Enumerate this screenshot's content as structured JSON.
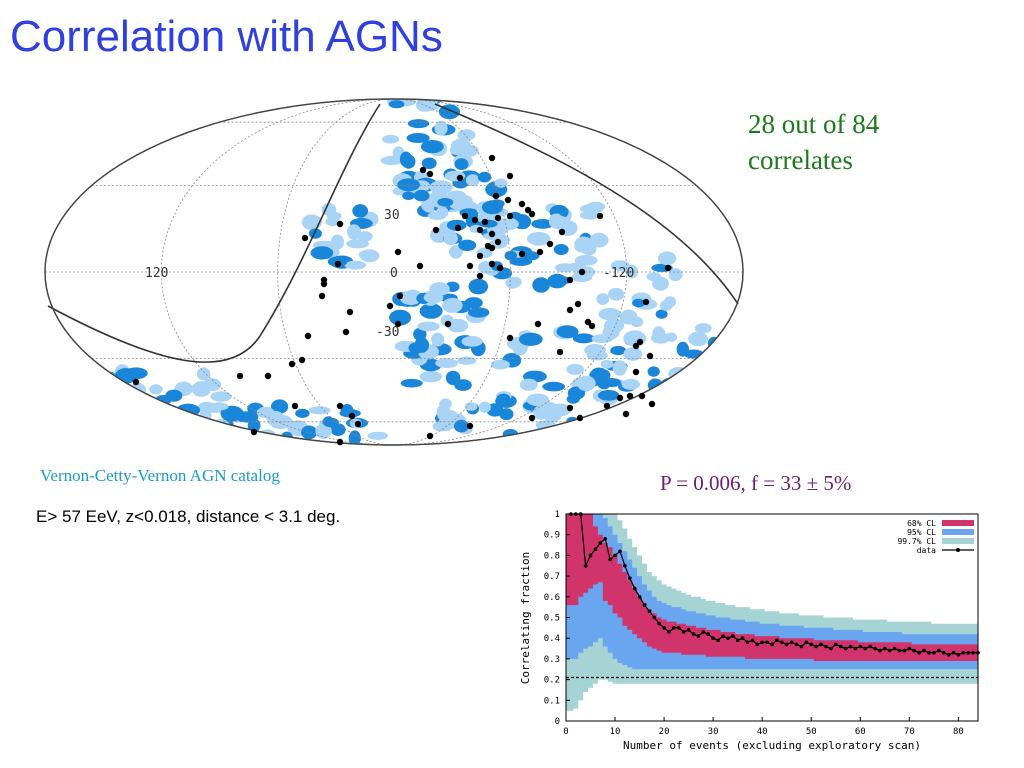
{
  "slide": {
    "title": "Correlation with AGNs",
    "correlation_line1": "28 out of 84",
    "correlation_line2": "correlates",
    "catalog_label": "Vernon-Cetty-Vernon AGN catalog",
    "cuts_label": "E> 57 EeV, z<0.018, distance < 3.1 deg.",
    "stat_label": "P = 0.006, f = 33 ± 5%"
  },
  "colors": {
    "title": "#2f3fe0",
    "agn_light": "#a9d4f5",
    "agn_dark": "#1a86d9",
    "event": "#000000",
    "cl68": "#d1336b",
    "cl95": "#6aa6ef",
    "cl997": "#a6d4d4"
  },
  "skymap": {
    "type": "scatter",
    "projection": "Hammer-Aitoff",
    "coordinate_labels": [
      "120",
      "30",
      "0",
      "-120",
      "-30"
    ]
  },
  "chart_data": {
    "type": "line",
    "xlabel": "Number of events (excluding exploratory scan)",
    "ylabel": "Correlating fraction",
    "xlim": [
      0,
      84
    ],
    "ylim": [
      0,
      1
    ],
    "xticks": [
      "0",
      "10",
      "20",
      "30",
      "40",
      "50",
      "60",
      "70",
      "80"
    ],
    "yticks": [
      "0",
      "0.1",
      "0.2",
      "0.3",
      "0.4",
      "0.5",
      "0.6",
      "0.7",
      "0.8",
      "0.9",
      "1"
    ],
    "reference_line": 0.21,
    "legend_position": "top-right",
    "legend": [
      "68% CL",
      "95% CL",
      "99.7% CL",
      "data"
    ],
    "x": [
      1,
      2,
      3,
      4,
      5,
      6,
      7,
      8,
      9,
      10,
      11,
      12,
      13,
      14,
      15,
      16,
      17,
      18,
      19,
      20,
      21,
      22,
      23,
      24,
      25,
      26,
      27,
      28,
      29,
      30,
      31,
      32,
      33,
      34,
      35,
      36,
      37,
      38,
      39,
      40,
      41,
      42,
      43,
      44,
      45,
      46,
      47,
      48,
      49,
      50,
      51,
      52,
      53,
      54,
      55,
      56,
      57,
      58,
      59,
      60,
      61,
      62,
      63,
      64,
      65,
      66,
      67,
      68,
      69,
      70,
      71,
      72,
      73,
      74,
      75,
      76,
      77,
      78,
      79,
      80,
      81,
      82,
      83,
      84
    ],
    "data": [
      1,
      1,
      1,
      0.75,
      0.8,
      0.83,
      0.86,
      0.88,
      0.78,
      0.8,
      0.82,
      0.75,
      0.69,
      0.64,
      0.6,
      0.56,
      0.53,
      0.5,
      0.47,
      0.45,
      0.43,
      0.45,
      0.45,
      0.43,
      0.44,
      0.42,
      0.41,
      0.43,
      0.42,
      0.4,
      0.39,
      0.41,
      0.4,
      0.41,
      0.39,
      0.4,
      0.38,
      0.39,
      0.37,
      0.38,
      0.38,
      0.37,
      0.39,
      0.38,
      0.37,
      0.38,
      0.37,
      0.36,
      0.38,
      0.37,
      0.36,
      0.37,
      0.36,
      0.35,
      0.37,
      0.36,
      0.35,
      0.36,
      0.35,
      0.36,
      0.35,
      0.36,
      0.35,
      0.34,
      0.35,
      0.34,
      0.35,
      0.34,
      0.34,
      0.35,
      0.34,
      0.33,
      0.34,
      0.33,
      0.33,
      0.34,
      0.33,
      0.32,
      0.33,
      0.32,
      0.33,
      0.33,
      0.33,
      0.33
    ],
    "band_68": [
      [
        0.56,
        1
      ],
      [
        0.56,
        1
      ],
      [
        0.6,
        1
      ],
      [
        0.62,
        1
      ],
      [
        0.64,
        1
      ],
      [
        0.66,
        0.94
      ],
      [
        0.67,
        0.9
      ],
      [
        0.58,
        0.86
      ],
      [
        0.56,
        0.84
      ],
      [
        0.52,
        0.8
      ],
      [
        0.5,
        0.76
      ],
      [
        0.46,
        0.72
      ],
      [
        0.44,
        0.68
      ],
      [
        0.42,
        0.64
      ],
      [
        0.4,
        0.6
      ],
      [
        0.38,
        0.57
      ],
      [
        0.36,
        0.54
      ],
      [
        0.35,
        0.52
      ],
      [
        0.34,
        0.5
      ],
      [
        0.33,
        0.49
      ],
      [
        0.33,
        0.48
      ],
      [
        0.33,
        0.48
      ],
      [
        0.33,
        0.47
      ],
      [
        0.32,
        0.47
      ],
      [
        0.32,
        0.46
      ],
      [
        0.32,
        0.46
      ],
      [
        0.32,
        0.45
      ],
      [
        0.32,
        0.45
      ],
      [
        0.31,
        0.44
      ],
      [
        0.31,
        0.44
      ],
      [
        0.31,
        0.44
      ],
      [
        0.31,
        0.43
      ],
      [
        0.31,
        0.43
      ],
      [
        0.31,
        0.43
      ],
      [
        0.31,
        0.42
      ],
      [
        0.31,
        0.42
      ],
      [
        0.3,
        0.42
      ],
      [
        0.3,
        0.42
      ],
      [
        0.3,
        0.41
      ],
      [
        0.3,
        0.41
      ],
      [
        0.3,
        0.41
      ],
      [
        0.3,
        0.41
      ],
      [
        0.3,
        0.41
      ],
      [
        0.3,
        0.4
      ],
      [
        0.3,
        0.4
      ],
      [
        0.3,
        0.4
      ],
      [
        0.3,
        0.4
      ],
      [
        0.3,
        0.4
      ],
      [
        0.3,
        0.4
      ],
      [
        0.3,
        0.4
      ],
      [
        0.29,
        0.39
      ],
      [
        0.29,
        0.39
      ],
      [
        0.29,
        0.39
      ],
      [
        0.29,
        0.39
      ],
      [
        0.29,
        0.39
      ],
      [
        0.29,
        0.39
      ],
      [
        0.29,
        0.39
      ],
      [
        0.29,
        0.39
      ],
      [
        0.29,
        0.39
      ],
      [
        0.29,
        0.38
      ],
      [
        0.29,
        0.38
      ],
      [
        0.29,
        0.38
      ],
      [
        0.29,
        0.38
      ],
      [
        0.29,
        0.38
      ],
      [
        0.29,
        0.38
      ],
      [
        0.29,
        0.38
      ],
      [
        0.29,
        0.38
      ],
      [
        0.29,
        0.38
      ],
      [
        0.29,
        0.38
      ],
      [
        0.29,
        0.38
      ],
      [
        0.29,
        0.37
      ],
      [
        0.29,
        0.37
      ],
      [
        0.29,
        0.37
      ],
      [
        0.29,
        0.37
      ],
      [
        0.29,
        0.37
      ],
      [
        0.29,
        0.37
      ],
      [
        0.29,
        0.37
      ],
      [
        0.29,
        0.37
      ],
      [
        0.29,
        0.37
      ],
      [
        0.29,
        0.37
      ],
      [
        0.29,
        0.37
      ],
      [
        0.29,
        0.37
      ],
      [
        0.29,
        0.37
      ],
      [
        0.29,
        0.37
      ]
    ],
    "band_95": [
      [
        0.3,
        1
      ],
      [
        0.3,
        1
      ],
      [
        0.33,
        1
      ],
      [
        0.35,
        1
      ],
      [
        0.36,
        1
      ],
      [
        0.38,
        1
      ],
      [
        0.4,
        1
      ],
      [
        0.36,
        0.98
      ],
      [
        0.33,
        0.94
      ],
      [
        0.3,
        0.9
      ],
      [
        0.28,
        0.86
      ],
      [
        0.27,
        0.82
      ],
      [
        0.26,
        0.78
      ],
      [
        0.25,
        0.74
      ],
      [
        0.25,
        0.7
      ],
      [
        0.25,
        0.66
      ],
      [
        0.25,
        0.63
      ],
      [
        0.25,
        0.6
      ],
      [
        0.25,
        0.58
      ],
      [
        0.25,
        0.57
      ],
      [
        0.25,
        0.56
      ],
      [
        0.25,
        0.55
      ],
      [
        0.25,
        0.55
      ],
      [
        0.25,
        0.54
      ],
      [
        0.25,
        0.53
      ],
      [
        0.25,
        0.53
      ],
      [
        0.25,
        0.52
      ],
      [
        0.25,
        0.52
      ],
      [
        0.25,
        0.51
      ],
      [
        0.25,
        0.51
      ],
      [
        0.25,
        0.5
      ],
      [
        0.25,
        0.5
      ],
      [
        0.25,
        0.5
      ],
      [
        0.25,
        0.49
      ],
      [
        0.25,
        0.49
      ],
      [
        0.25,
        0.49
      ],
      [
        0.25,
        0.48
      ],
      [
        0.25,
        0.48
      ],
      [
        0.25,
        0.48
      ],
      [
        0.25,
        0.47
      ],
      [
        0.25,
        0.47
      ],
      [
        0.25,
        0.47
      ],
      [
        0.25,
        0.47
      ],
      [
        0.25,
        0.46
      ],
      [
        0.25,
        0.46
      ],
      [
        0.25,
        0.46
      ],
      [
        0.25,
        0.46
      ],
      [
        0.25,
        0.46
      ],
      [
        0.25,
        0.45
      ],
      [
        0.25,
        0.45
      ],
      [
        0.25,
        0.45
      ],
      [
        0.25,
        0.45
      ],
      [
        0.25,
        0.45
      ],
      [
        0.25,
        0.45
      ],
      [
        0.25,
        0.44
      ],
      [
        0.25,
        0.44
      ],
      [
        0.25,
        0.44
      ],
      [
        0.25,
        0.44
      ],
      [
        0.25,
        0.44
      ],
      [
        0.25,
        0.44
      ],
      [
        0.25,
        0.43
      ],
      [
        0.25,
        0.43
      ],
      [
        0.25,
        0.43
      ],
      [
        0.25,
        0.43
      ],
      [
        0.25,
        0.43
      ],
      [
        0.25,
        0.43
      ],
      [
        0.25,
        0.43
      ],
      [
        0.25,
        0.43
      ],
      [
        0.25,
        0.42
      ],
      [
        0.25,
        0.42
      ],
      [
        0.25,
        0.42
      ],
      [
        0.25,
        0.42
      ],
      [
        0.25,
        0.42
      ],
      [
        0.25,
        0.42
      ],
      [
        0.25,
        0.42
      ],
      [
        0.25,
        0.42
      ],
      [
        0.25,
        0.42
      ],
      [
        0.25,
        0.42
      ],
      [
        0.25,
        0.42
      ],
      [
        0.25,
        0.42
      ],
      [
        0.25,
        0.42
      ],
      [
        0.25,
        0.42
      ],
      [
        0.25,
        0.42
      ],
      [
        0.25,
        0.42
      ]
    ],
    "band_997": [
      [
        0.05,
        1
      ],
      [
        0.06,
        1
      ],
      [
        0.1,
        1
      ],
      [
        0.14,
        1
      ],
      [
        0.16,
        1
      ],
      [
        0.18,
        1
      ],
      [
        0.2,
        1
      ],
      [
        0.2,
        1
      ],
      [
        0.19,
        1
      ],
      [
        0.18,
        1
      ],
      [
        0.18,
        0.97
      ],
      [
        0.18,
        0.93
      ],
      [
        0.18,
        0.88
      ],
      [
        0.18,
        0.84
      ],
      [
        0.18,
        0.8
      ],
      [
        0.18,
        0.76
      ],
      [
        0.18,
        0.72
      ],
      [
        0.18,
        0.7
      ],
      [
        0.18,
        0.68
      ],
      [
        0.18,
        0.66
      ],
      [
        0.18,
        0.65
      ],
      [
        0.18,
        0.64
      ],
      [
        0.18,
        0.63
      ],
      [
        0.18,
        0.62
      ],
      [
        0.18,
        0.61
      ],
      [
        0.18,
        0.6
      ],
      [
        0.18,
        0.6
      ],
      [
        0.18,
        0.59
      ],
      [
        0.18,
        0.58
      ],
      [
        0.18,
        0.58
      ],
      [
        0.18,
        0.57
      ],
      [
        0.18,
        0.57
      ],
      [
        0.18,
        0.56
      ],
      [
        0.18,
        0.56
      ],
      [
        0.18,
        0.55
      ],
      [
        0.18,
        0.55
      ],
      [
        0.18,
        0.55
      ],
      [
        0.18,
        0.54
      ],
      [
        0.18,
        0.54
      ],
      [
        0.18,
        0.54
      ],
      [
        0.18,
        0.53
      ],
      [
        0.18,
        0.53
      ],
      [
        0.18,
        0.53
      ],
      [
        0.18,
        0.52
      ],
      [
        0.18,
        0.52
      ],
      [
        0.18,
        0.52
      ],
      [
        0.18,
        0.52
      ],
      [
        0.18,
        0.51
      ],
      [
        0.18,
        0.51
      ],
      [
        0.18,
        0.51
      ],
      [
        0.18,
        0.51
      ],
      [
        0.18,
        0.51
      ],
      [
        0.18,
        0.5
      ],
      [
        0.18,
        0.5
      ],
      [
        0.18,
        0.5
      ],
      [
        0.18,
        0.5
      ],
      [
        0.18,
        0.5
      ],
      [
        0.18,
        0.5
      ],
      [
        0.18,
        0.49
      ],
      [
        0.18,
        0.49
      ],
      [
        0.18,
        0.49
      ],
      [
        0.18,
        0.49
      ],
      [
        0.18,
        0.49
      ],
      [
        0.18,
        0.49
      ],
      [
        0.18,
        0.49
      ],
      [
        0.18,
        0.48
      ],
      [
        0.18,
        0.48
      ],
      [
        0.18,
        0.48
      ],
      [
        0.18,
        0.48
      ],
      [
        0.18,
        0.48
      ],
      [
        0.18,
        0.48
      ],
      [
        0.18,
        0.48
      ],
      [
        0.18,
        0.48
      ],
      [
        0.18,
        0.48
      ],
      [
        0.18,
        0.47
      ],
      [
        0.18,
        0.47
      ],
      [
        0.18,
        0.47
      ],
      [
        0.18,
        0.47
      ],
      [
        0.18,
        0.47
      ],
      [
        0.18,
        0.47
      ],
      [
        0.18,
        0.47
      ],
      [
        0.18,
        0.47
      ],
      [
        0.18,
        0.47
      ],
      [
        0.18,
        0.47
      ]
    ]
  }
}
